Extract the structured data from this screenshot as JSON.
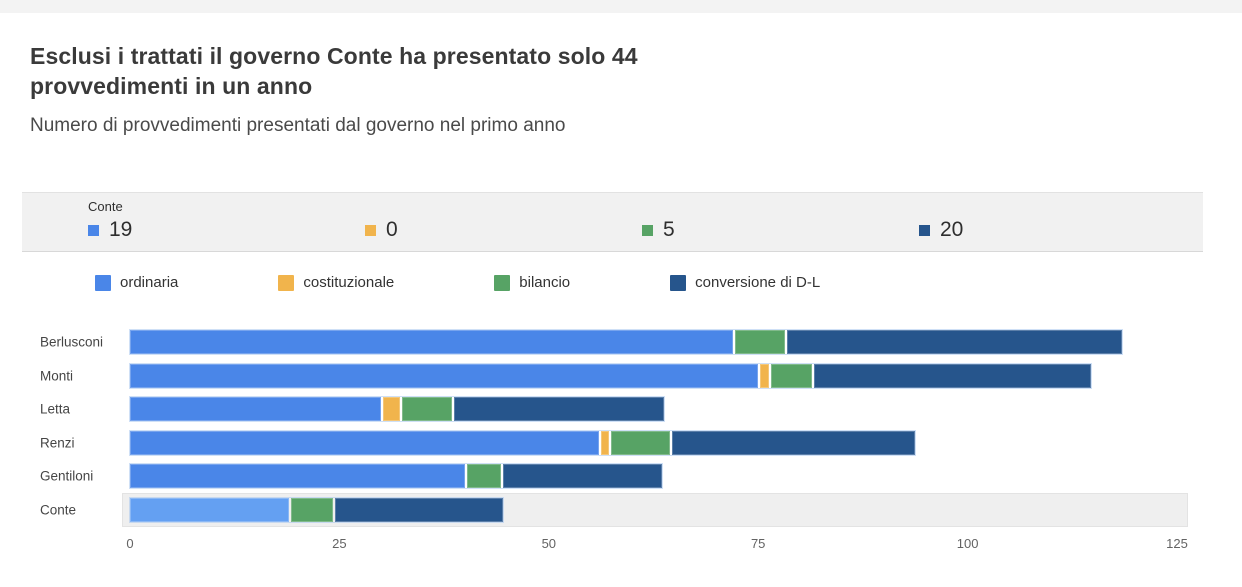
{
  "header": {
    "title": "Esclusi i trattati il governo Conte ha presentato solo 44 provvedimenti in un anno",
    "subtitle": "Numero di provvedimenti presentati dal governo nel primo anno"
  },
  "tooltip": {
    "title": "Conte",
    "items": [
      {
        "series": "ordinaria",
        "value": "19",
        "color": "#4a86e8"
      },
      {
        "series": "costituzionale",
        "value": "0",
        "color": "#f1b44c"
      },
      {
        "series": "bilancio",
        "value": "5",
        "color": "#57a365"
      },
      {
        "series": "conversione di D-L",
        "value": "20",
        "color": "#26558c"
      }
    ]
  },
  "legend": {
    "items": [
      {
        "label": "ordinaria",
        "color": "#4a86e8"
      },
      {
        "label": "costituzionale",
        "color": "#f1b44c"
      },
      {
        "label": "bilancio",
        "color": "#57a365"
      },
      {
        "label": "conversione di D-L",
        "color": "#26558c"
      }
    ]
  },
  "chart_data": {
    "type": "bar",
    "orientation": "horizontal",
    "stacked": true,
    "title": "Esclusi i trattati il governo Conte ha presentato solo 44 provvedimenti in un anno",
    "subtitle": "Numero di provvedimenti presentati dal governo nel primo anno",
    "categories": [
      "Berlusconi",
      "Monti",
      "Letta",
      "Renzi",
      "Gentiloni",
      "Conte"
    ],
    "series": [
      {
        "name": "ordinaria",
        "color": "#4a86e8",
        "values": [
          72,
          75,
          30,
          56,
          40,
          19
        ]
      },
      {
        "name": "costituzionale",
        "color": "#f1b44c",
        "values": [
          0,
          1,
          2,
          1,
          0,
          0
        ]
      },
      {
        "name": "bilancio",
        "color": "#57a365",
        "values": [
          6,
          5,
          6,
          7,
          4,
          5
        ]
      },
      {
        "name": "conversione di D-L",
        "color": "#26558c",
        "values": [
          40,
          33,
          25,
          29,
          19,
          20
        ]
      }
    ],
    "xticks": [
      0,
      25,
      50,
      75,
      100,
      125
    ],
    "xmax": 125,
    "grid": false,
    "legend_position": "top",
    "highlight": {
      "category": "Conte",
      "series": "ordinaria",
      "color": "#64a0f2"
    }
  }
}
